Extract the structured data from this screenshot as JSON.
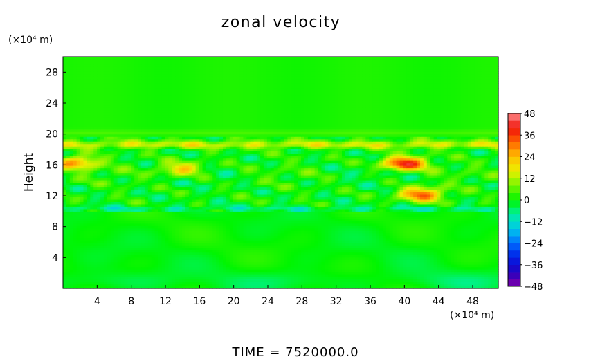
{
  "chart_data": {
    "type": "heatmap",
    "title": "zonal velocity",
    "ylabel": "Height",
    "x_unit": "(×10⁴ m)",
    "y_unit": "(×10⁴ m)",
    "xlim": [
      0,
      51
    ],
    "ylim": [
      0,
      30
    ],
    "x_ticks": [
      4,
      8,
      12,
      16,
      20,
      24,
      28,
      32,
      36,
      40,
      44,
      48
    ],
    "y_ticks": [
      4,
      8,
      12,
      16,
      20,
      24,
      28
    ],
    "colorbar": {
      "range": [
        -48,
        48
      ],
      "step": 4,
      "tick_values": [
        48,
        36,
        24,
        12,
        0,
        -12,
        -24,
        -36,
        -48
      ],
      "tick_labels": [
        "48",
        "36",
        "24",
        "12",
        "0",
        "−12",
        "−24",
        "−36",
        "−48"
      ]
    },
    "field_description_by_height": [
      {
        "height": [
          0,
          10
        ],
        "value_range": [
          -12,
          4
        ],
        "pattern": "mostly near 0 with weak negative patches near the bottom"
      },
      {
        "height": [
          10,
          19
        ],
        "value_range": [
          -16,
          40
        ],
        "pattern": "turbulent layer with strong positive jets near 15-17"
      },
      {
        "height": [
          19,
          30
        ],
        "value_range": [
          0,
          4
        ],
        "pattern": "nearly uniform, close to 0"
      }
    ],
    "highlights": [
      {
        "x": 1.5,
        "y": 16.3,
        "value": 26
      },
      {
        "x": 40,
        "y": 16.2,
        "value": 40
      },
      {
        "x": 42,
        "y": 12.2,
        "value": 32
      },
      {
        "x": 14,
        "y": 15.5,
        "value": 22
      }
    ]
  },
  "footer": {
    "time_label": "TIME  =  7520000.0"
  }
}
